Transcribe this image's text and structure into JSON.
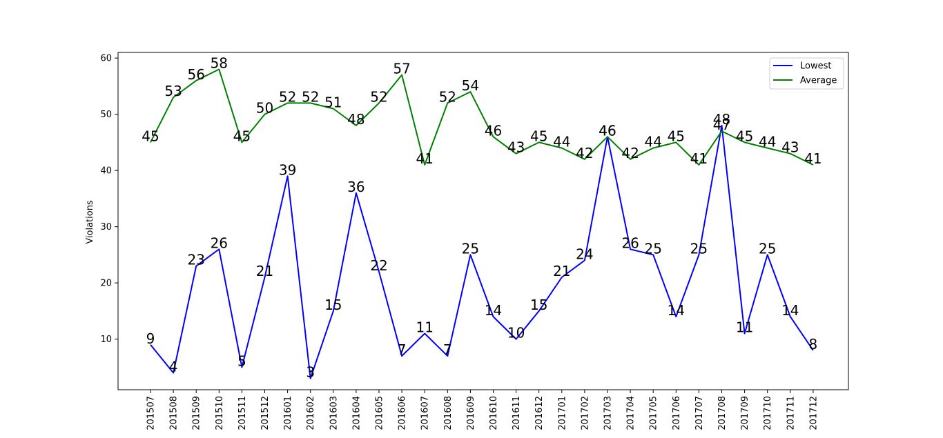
{
  "chart_data": {
    "type": "line",
    "x": [
      "201507",
      "201508",
      "201509",
      "201510",
      "201511",
      "201512",
      "201601",
      "201602",
      "201603",
      "201604",
      "201605",
      "201606",
      "201607",
      "201608",
      "201609",
      "201610",
      "201611",
      "201612",
      "201701",
      "201702",
      "201703",
      "201704",
      "201705",
      "201706",
      "201707",
      "201708",
      "201709",
      "201710",
      "201711",
      "201712"
    ],
    "series": [
      {
        "name": "Lowest",
        "color": "#0000ff",
        "values": [
          9,
          4,
          23,
          26,
          5,
          21,
          39,
          3,
          15,
          36,
          22,
          7,
          11,
          7,
          25,
          14,
          10,
          15,
          21,
          24,
          46,
          26,
          25,
          14,
          25,
          48,
          11,
          25,
          14,
          8
        ]
      },
      {
        "name": "Average",
        "color": "#008000",
        "values": [
          45,
          53,
          56,
          58,
          45,
          50,
          52,
          52,
          51,
          48,
          52,
          57,
          41,
          52,
          54,
          46,
          43,
          45,
          44,
          42,
          46,
          42,
          44,
          45,
          41,
          47,
          45,
          44,
          43,
          41
        ]
      }
    ],
    "ylabel": "Violations",
    "xlabel": "",
    "ylim": [
      1,
      61
    ],
    "yticks": [
      10,
      20,
      30,
      40,
      50,
      60
    ],
    "grid": false,
    "legend_position": "top-right"
  }
}
